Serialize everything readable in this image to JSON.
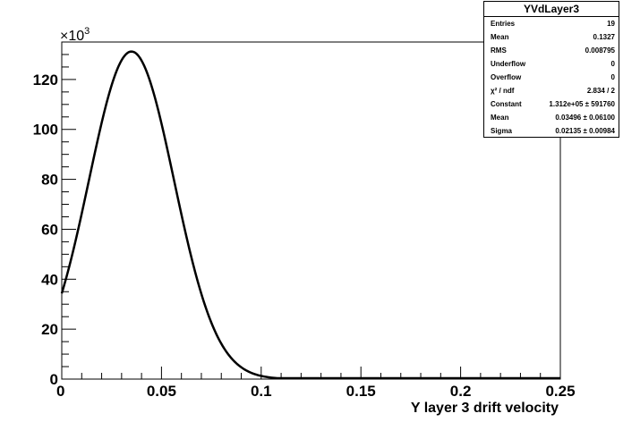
{
  "chart_data": {
    "type": "line",
    "title": "",
    "xlabel": "Y layer 3 drift velocity",
    "ylabel": "",
    "y_multiplier_label": "×10",
    "y_multiplier_exp": "3",
    "xlim": [
      0,
      0.25
    ],
    "ylim": [
      0,
      135
    ],
    "x_ticks": [
      "0",
      "0.05",
      "0.1",
      "0.15",
      "0.2",
      "0.25"
    ],
    "y_ticks": [
      "0",
      "20",
      "40",
      "60",
      "80",
      "100",
      "120"
    ],
    "grid": false,
    "fit": {
      "constant": 131.2,
      "mean": 0.03496,
      "sigma": 0.02135,
      "x_range": [
        0,
        0.25
      ]
    },
    "line_color": "#000000"
  },
  "stats": {
    "title": "YVdLayer3",
    "rows": [
      {
        "label": "Entries",
        "value": "19"
      },
      {
        "label": "Mean",
        "value": "0.1327"
      },
      {
        "label": "RMS",
        "value": "0.008795"
      },
      {
        "label": "Underflow",
        "value": "0"
      },
      {
        "label": "Overflow",
        "value": "0"
      },
      {
        "label": "χ² / ndf",
        "value": "2.834 / 2"
      },
      {
        "label": "Constant",
        "value": "1.312e+05 ± 591760"
      },
      {
        "label": "Mean",
        "value": "0.03496 ± 0.06100"
      },
      {
        "label": "Sigma",
        "value": "0.02135 ± 0.00984"
      }
    ]
  }
}
